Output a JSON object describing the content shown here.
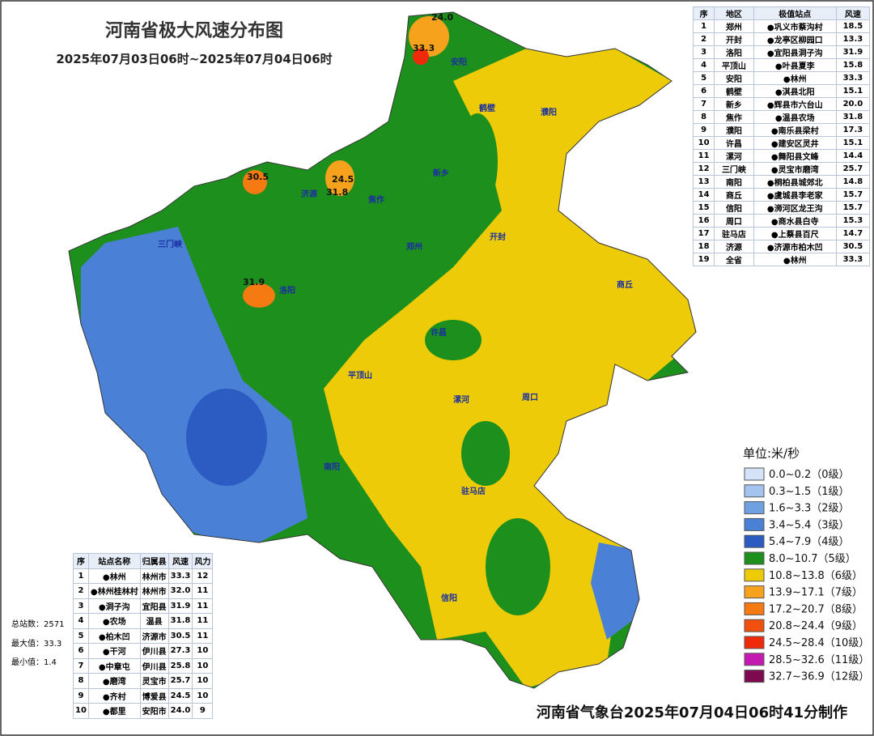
{
  "header": {
    "title": "河南省极大风速分布图",
    "subtitle": "2025年07月03日06时~2025年07月04日06时"
  },
  "extreme_by_city": {
    "columns": [
      "序",
      "地区",
      "极值站点",
      "风速"
    ],
    "rows": [
      [
        "1",
        "郑州",
        "●巩义市蔡沟村",
        "18.5"
      ],
      [
        "2",
        "开封",
        "●龙亭区柳园口",
        "13.3"
      ],
      [
        "3",
        "洛阳",
        "●宜阳县洞子沟",
        "31.9"
      ],
      [
        "4",
        "平顶山",
        "●叶县夏李",
        "15.8"
      ],
      [
        "5",
        "安阳",
        "●林州",
        "33.3"
      ],
      [
        "6",
        "鹤壁",
        "●淇县北阳",
        "15.1"
      ],
      [
        "7",
        "新乡",
        "●辉县市六台山",
        "20.0"
      ],
      [
        "8",
        "焦作",
        "●温县农场",
        "31.8"
      ],
      [
        "9",
        "濮阳",
        "●南乐县梁村",
        "17.3"
      ],
      [
        "10",
        "许昌",
        "●建安区灵井",
        "15.1"
      ],
      [
        "11",
        "漯河",
        "●舞阳县文峰",
        "14.4"
      ],
      [
        "12",
        "三门峡",
        "●灵宝市磨湾",
        "25.7"
      ],
      [
        "13",
        "南阳",
        "●桐柏县城郊北",
        "14.8"
      ],
      [
        "14",
        "商丘",
        "●虞城县李老家",
        "15.7"
      ],
      [
        "15",
        "信阳",
        "●浉河区龙王沟",
        "15.7"
      ],
      [
        "16",
        "周口",
        "●商水县白寺",
        "15.3"
      ],
      [
        "17",
        "驻马店",
        "●上蔡县百尺",
        "14.7"
      ],
      [
        "18",
        "济源",
        "●济源市柏木凹",
        "30.5"
      ],
      [
        "19",
        "全省",
        "●林州",
        "33.3"
      ]
    ]
  },
  "top_stations": {
    "columns": [
      "序",
      "站点名称",
      "归属县",
      "风速",
      "风力"
    ],
    "rows": [
      [
        "1",
        "●林州",
        "林州市",
        "33.3",
        "12"
      ],
      [
        "2",
        "●林州桂林村",
        "林州市",
        "32.0",
        "11"
      ],
      [
        "3",
        "●洞子沟",
        "宜阳县",
        "31.9",
        "11"
      ],
      [
        "4",
        "●农场",
        "温县",
        "31.8",
        "11"
      ],
      [
        "5",
        "●柏木凹",
        "济源市",
        "30.5",
        "11"
      ],
      [
        "6",
        "●干河",
        "伊川县",
        "27.3",
        "10"
      ],
      [
        "7",
        "●中章屯",
        "伊川县",
        "25.8",
        "10"
      ],
      [
        "8",
        "●磨湾",
        "灵宝市",
        "25.7",
        "10"
      ],
      [
        "9",
        "●齐村",
        "博爱县",
        "24.5",
        "10"
      ],
      [
        "10",
        "●都里",
        "安阳市",
        "24.0",
        "9"
      ]
    ]
  },
  "stats": [
    "总站数：2571",
    "最大值：33.3",
    "最小值：1.4"
  ],
  "legend": {
    "unit": "单位:米/秒",
    "items": [
      {
        "label": "0.0~0.2（0级）",
        "color": "#d4e3f7"
      },
      {
        "label": "0.3~1.5（1级）",
        "color": "#a3c4ee"
      },
      {
        "label": "1.6~3.3（2级）",
        "color": "#6fa0e2"
      },
      {
        "label": "3.4~5.4（3级）",
        "color": "#4a80d6"
      },
      {
        "label": "5.4~7.9（4级）",
        "color": "#2c5cc2"
      },
      {
        "label": "8.0~10.7（5级）",
        "color": "#1d8f1d"
      },
      {
        "label": "10.8~13.8（6级）",
        "color": "#edcb08"
      },
      {
        "label": "13.9~17.1（7级）",
        "color": "#f7a21c"
      },
      {
        "label": "17.2~20.7（8级）",
        "color": "#f57a12"
      },
      {
        "label": "20.8~24.4（9级）",
        "color": "#f2500f"
      },
      {
        "label": "24.5~28.4（10级）",
        "color": "#ee2a0a"
      },
      {
        "label": "28.5~32.6（11级）",
        "color": "#c41ab2"
      },
      {
        "label": "32.7~36.9（12级）",
        "color": "#7d0a4f"
      }
    ]
  },
  "footer": "河南省气象台2025年07月04日06时41分制作",
  "city_labels": [
    "安阳",
    "鹤壁",
    "濮阳",
    "新乡",
    "焦作",
    "济源",
    "郑州",
    "开封",
    "三门峡",
    "洛阳",
    "商丘",
    "许昌",
    "平顶山",
    "漯河",
    "周口",
    "南阳",
    "驻马店",
    "信阳"
  ],
  "peak_labels": [
    "24.0",
    "33.3",
    "30.5",
    "24.5",
    "31.8",
    "31.9"
  ]
}
